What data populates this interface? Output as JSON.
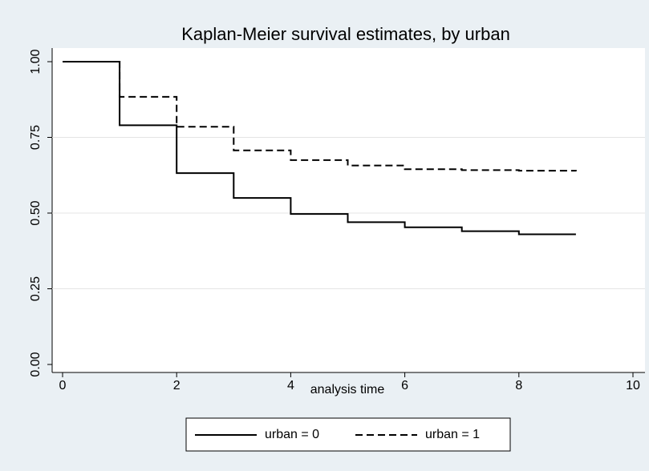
{
  "chart_data": {
    "type": "step",
    "title": "Kaplan-Meier survival estimates, by urban",
    "x_label": "analysis time",
    "x": [
      0,
      1,
      2,
      3,
      4,
      5,
      6,
      7,
      8,
      9
    ],
    "series": [
      {
        "name": "urban = 0",
        "color": "#000000",
        "dash": "solid",
        "values": [
          1.0,
          0.79,
          0.632,
          0.55,
          0.497,
          0.47,
          0.453,
          0.44,
          0.43,
          0.43
        ]
      },
      {
        "name": "urban = 1",
        "color": "#000000",
        "dash": "dashed",
        "values": [
          1.0,
          0.884,
          0.785,
          0.707,
          0.675,
          0.657,
          0.645,
          0.642,
          0.64,
          0.638
        ]
      }
    ],
    "xlim": [
      0,
      10
    ],
    "xticks": [
      0,
      2,
      4,
      6,
      8,
      10
    ],
    "ylim": [
      0,
      1
    ],
    "yticks": [
      {
        "value": 0,
        "label": "0.00"
      },
      {
        "value": 0.25,
        "label": "0.25"
      },
      {
        "value": 0.5,
        "label": "0.50"
      },
      {
        "value": 0.75,
        "label": "0.75"
      },
      {
        "value": 1,
        "label": "1.00"
      }
    ],
    "grid": true,
    "legend": "bottom"
  }
}
